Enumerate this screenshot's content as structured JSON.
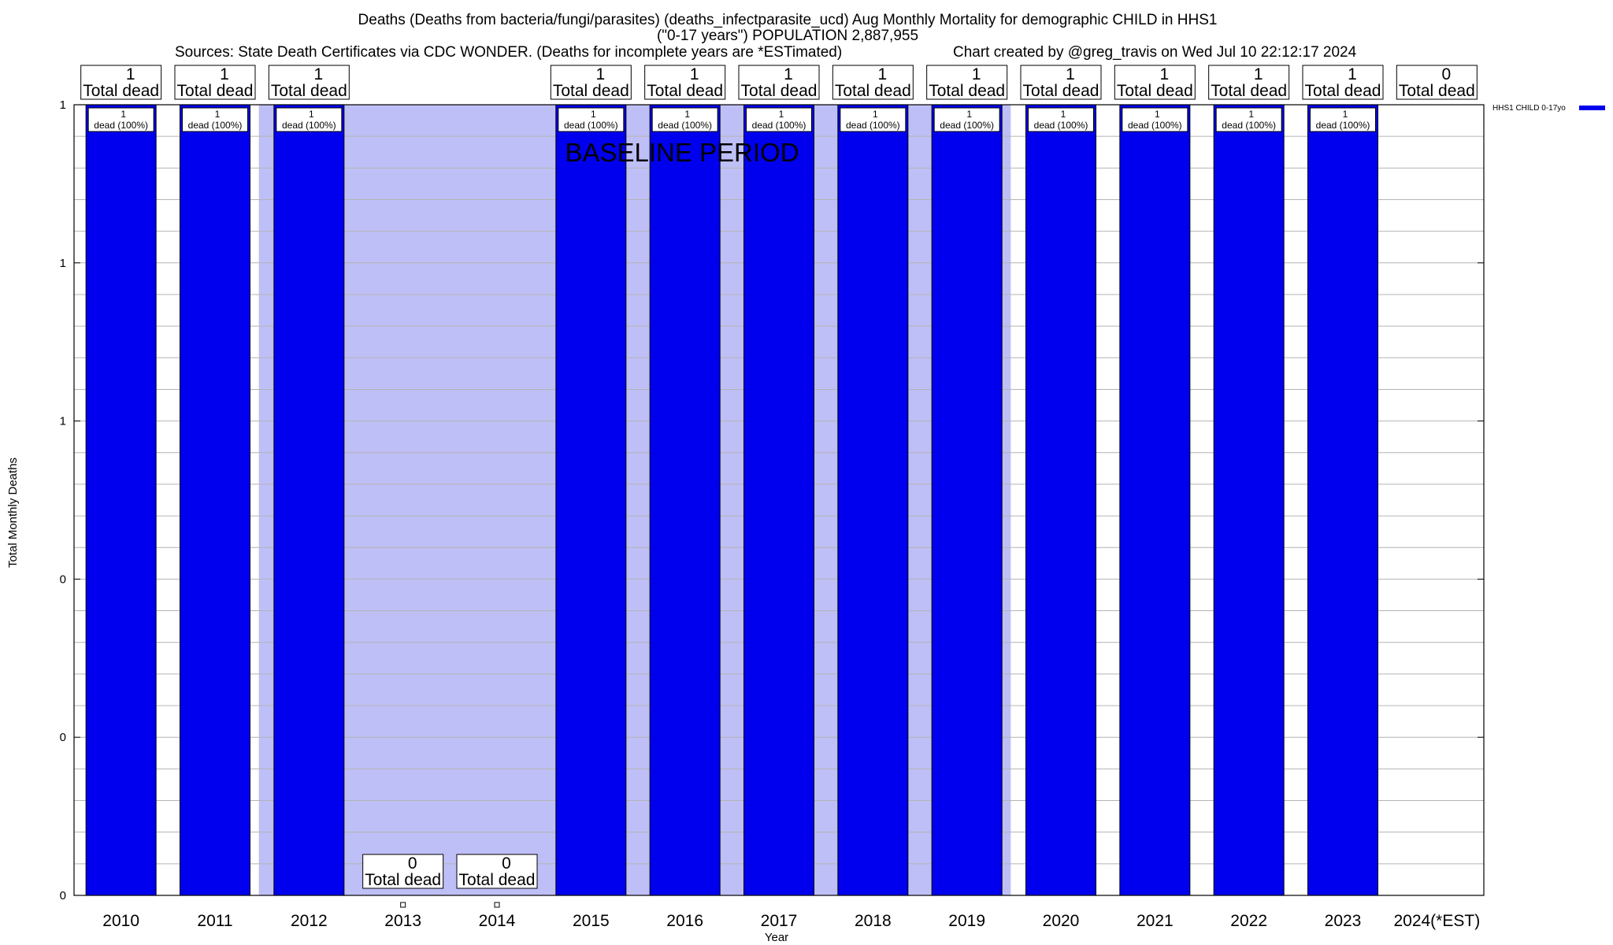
{
  "chart_data": {
    "type": "bar",
    "title_lines": [
      "Deaths (Deaths from bacteria/fungi/parasites) (deaths_infectparasite_ucd) Aug Monthly Mortality for demographic CHILD in HHS1",
      "(\"0-17 years\") POPULATION 2,887,955"
    ],
    "sources": "Sources: State Death Certificates via CDC WONDER. (Deaths for incomplete years are *ESTimated)",
    "credit": "Chart created by @greg_travis on Wed Jul 10 22:12:17 2024",
    "xlabel": "Year",
    "ylabel": "Total Monthly Deaths",
    "categories": [
      "2010",
      "2011",
      "2012",
      "2013",
      "2014",
      "2015",
      "2016",
      "2017",
      "2018",
      "2019",
      "2020",
      "2021",
      "2022",
      "2023",
      "2024(*EST)"
    ],
    "ylim": [
      0,
      1
    ],
    "ytick_values": [
      0,
      0.2,
      0.4,
      0.6,
      0.8,
      1.0
    ],
    "ytick_labels": [
      "0",
      "0",
      "0",
      "1",
      "1",
      "1"
    ],
    "series": [
      {
        "name": "HHS1 CHILD 0-17yo",
        "color": "#0000ee",
        "values": [
          1,
          1,
          1,
          0,
          0,
          1,
          1,
          1,
          1,
          1,
          1,
          1,
          1,
          1,
          0
        ]
      }
    ],
    "top_labels": {
      "counts": [
        "1",
        "1",
        "1",
        "",
        "",
        "1",
        "1",
        "1",
        "1",
        "1",
        "1",
        "1",
        "1",
        "1",
        "0"
      ],
      "caption": "Total dead"
    },
    "bottom_labels": {
      "counts": [
        "0",
        "0"
      ],
      "caption": "Total dead",
      "for_categories": [
        "2013",
        "2014"
      ]
    },
    "inner_labels": {
      "count": "1",
      "caption": "dead (100%)"
    },
    "baseline": {
      "label": "BASELINE PERIOD",
      "from": "2012",
      "to": "2019",
      "color": "#bfbff7"
    },
    "grid": true,
    "legend_placement": "top-right"
  }
}
